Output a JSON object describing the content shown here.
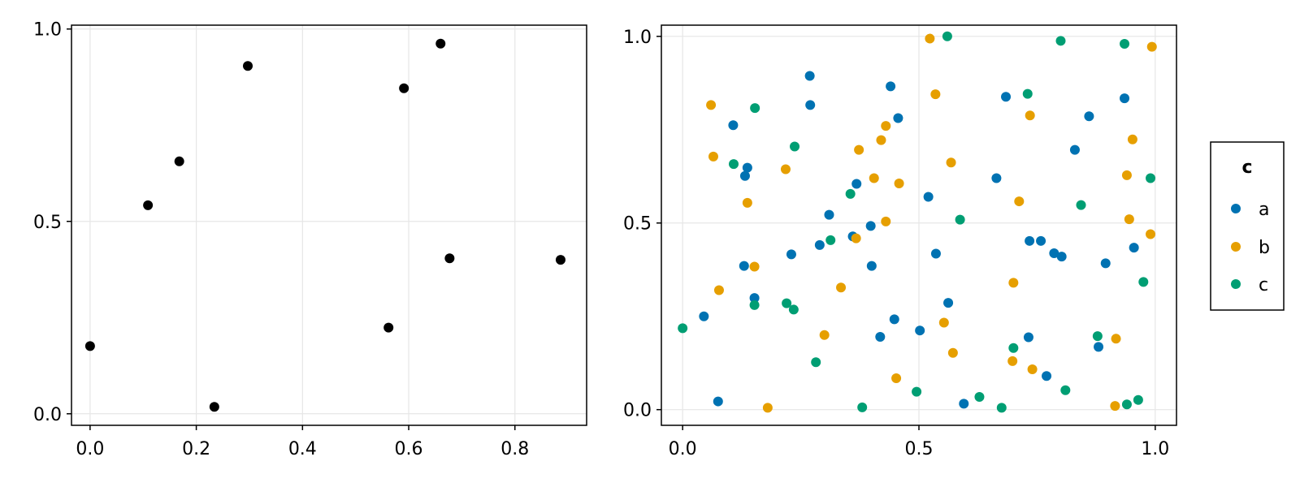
{
  "chart_data": [
    {
      "type": "scatter",
      "xlim": [
        -0.035,
        0.935
      ],
      "ylim": [
        -0.03,
        1.01
      ],
      "xticks": [
        0.0,
        0.2,
        0.4,
        0.6,
        0.8
      ],
      "xtick_labels": [
        "0.0",
        "0.2",
        "0.4",
        "0.6",
        "0.8"
      ],
      "yticks": [
        0.0,
        0.5,
        1.0
      ],
      "ytick_labels": [
        "0.0",
        "0.5",
        "1.0"
      ],
      "grid": true,
      "series": [
        {
          "color": "#000000",
          "points": [
            [
              0.0,
              0.176
            ],
            [
              0.109,
              0.542
            ],
            [
              0.168,
              0.656
            ],
            [
              0.234,
              0.018
            ],
            [
              0.297,
              0.904
            ],
            [
              0.562,
              0.224
            ],
            [
              0.591,
              0.846
            ],
            [
              0.66,
              0.962
            ],
            [
              0.677,
              0.404
            ],
            [
              0.886,
              0.4
            ]
          ]
        }
      ]
    },
    {
      "type": "scatter",
      "xlim": [
        -0.045,
        1.045
      ],
      "ylim": [
        -0.042,
        1.03
      ],
      "xticks": [
        0.0,
        0.5,
        1.0
      ],
      "xtick_labels": [
        "0.0",
        "0.5",
        "1.0"
      ],
      "yticks": [
        0.0,
        0.5,
        1.0
      ],
      "ytick_labels": [
        "0.0",
        "0.5",
        "1.0"
      ],
      "grid": true,
      "legend": {
        "title": "c",
        "position": "right"
      },
      "series": [
        {
          "name": "a",
          "color": "#0072b2",
          "points": [
            [
              0.045,
              0.25
            ],
            [
              0.075,
              0.022
            ],
            [
              0.107,
              0.762
            ],
            [
              0.13,
              0.385
            ],
            [
              0.132,
              0.626
            ],
            [
              0.137,
              0.648
            ],
            [
              0.152,
              0.299
            ],
            [
              0.23,
              0.416
            ],
            [
              0.269,
              0.894
            ],
            [
              0.27,
              0.816
            ],
            [
              0.29,
              0.441
            ],
            [
              0.31,
              0.522
            ],
            [
              0.36,
              0.464
            ],
            [
              0.368,
              0.605
            ],
            [
              0.398,
              0.492
            ],
            [
              0.4,
              0.385
            ],
            [
              0.418,
              0.195
            ],
            [
              0.44,
              0.866
            ],
            [
              0.448,
              0.242
            ],
            [
              0.456,
              0.781
            ],
            [
              0.502,
              0.212
            ],
            [
              0.52,
              0.57
            ],
            [
              0.536,
              0.418
            ],
            [
              0.562,
              0.286
            ],
            [
              0.595,
              0.016
            ],
            [
              0.664,
              0.62
            ],
            [
              0.684,
              0.838
            ],
            [
              0.732,
              0.194
            ],
            [
              0.734,
              0.452
            ],
            [
              0.758,
              0.452
            ],
            [
              0.77,
              0.09
            ],
            [
              0.786,
              0.419
            ],
            [
              0.802,
              0.41
            ],
            [
              0.83,
              0.696
            ],
            [
              0.86,
              0.786
            ],
            [
              0.88,
              0.168
            ],
            [
              0.895,
              0.392
            ],
            [
              0.935,
              0.834
            ],
            [
              0.955,
              0.434
            ]
          ]
        },
        {
          "name": "b",
          "color": "#e69f00",
          "points": [
            [
              0.06,
              0.816
            ],
            [
              0.065,
              0.678
            ],
            [
              0.077,
              0.32
            ],
            [
              0.137,
              0.554
            ],
            [
              0.152,
              0.383
            ],
            [
              0.18,
              0.005
            ],
            [
              0.218,
              0.644
            ],
            [
              0.3,
              0.2
            ],
            [
              0.335,
              0.327
            ],
            [
              0.367,
              0.459
            ],
            [
              0.373,
              0.696
            ],
            [
              0.405,
              0.62
            ],
            [
              0.42,
              0.722
            ],
            [
              0.43,
              0.76
            ],
            [
              0.43,
              0.504
            ],
            [
              0.452,
              0.084
            ],
            [
              0.458,
              0.606
            ],
            [
              0.523,
              0.994
            ],
            [
              0.535,
              0.845
            ],
            [
              0.553,
              0.233
            ],
            [
              0.568,
              0.662
            ],
            [
              0.572,
              0.152
            ],
            [
              0.698,
              0.13
            ],
            [
              0.7,
              0.34
            ],
            [
              0.712,
              0.558
            ],
            [
              0.735,
              0.788
            ],
            [
              0.74,
              0.108
            ],
            [
              0.915,
              0.01
            ],
            [
              0.917,
              0.19
            ],
            [
              0.94,
              0.628
            ],
            [
              0.945,
              0.51
            ],
            [
              0.952,
              0.724
            ],
            [
              0.99,
              0.47
            ],
            [
              0.993,
              0.972
            ]
          ]
        },
        {
          "name": "c",
          "color": "#009e73",
          "points": [
            [
              0.0,
              0.218
            ],
            [
              0.108,
              0.658
            ],
            [
              0.152,
              0.28
            ],
            [
              0.153,
              0.808
            ],
            [
              0.22,
              0.285
            ],
            [
              0.235,
              0.268
            ],
            [
              0.237,
              0.705
            ],
            [
              0.282,
              0.127
            ],
            [
              0.313,
              0.454
            ],
            [
              0.355,
              0.578
            ],
            [
              0.38,
              0.006
            ],
            [
              0.495,
              0.048
            ],
            [
              0.56,
              1.0
            ],
            [
              0.587,
              0.509
            ],
            [
              0.628,
              0.034
            ],
            [
              0.675,
              0.005
            ],
            [
              0.7,
              0.165
            ],
            [
              0.73,
              0.846
            ],
            [
              0.8,
              0.988
            ],
            [
              0.81,
              0.052
            ],
            [
              0.843,
              0.548
            ],
            [
              0.878,
              0.197
            ],
            [
              0.935,
              0.98
            ],
            [
              0.94,
              0.014
            ],
            [
              0.964,
              0.026
            ],
            [
              0.975,
              0.342
            ],
            [
              0.99,
              0.62
            ]
          ]
        }
      ]
    }
  ]
}
